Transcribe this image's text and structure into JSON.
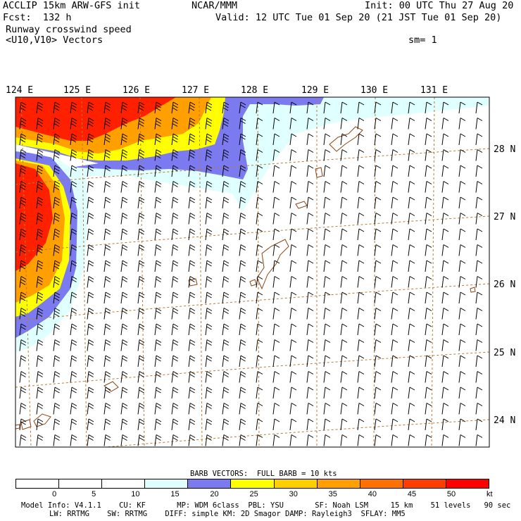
{
  "header": {
    "model": "ACCLIP 15km ARW-GFS init",
    "org": "NCAR/MMM",
    "init": "Init: 00 UTC Thu 27 Aug 20",
    "fcst": "Fcst:  132 h",
    "valid": "Valid: 12 UTC Tue 01 Sep 20 (21 JST Tue 01 Sep 20)",
    "field": "Runway crosswind speed",
    "vectors": "<U10,V10> Vectors",
    "smoothing": "sm= 1"
  },
  "axes": {
    "lon_labels": [
      "124 E",
      "125 E",
      "126 E",
      "127 E",
      "128 E",
      "129 E",
      "130 E",
      "131 E"
    ],
    "lat_labels": [
      "28 N",
      "27 N",
      "26 N",
      "25 N",
      "24 N"
    ]
  },
  "colorbar": {
    "title": "BARB VECTORS:  FULL BARB = 10 kts",
    "ticks": [
      "0",
      "5",
      "10",
      "15",
      "20",
      "25",
      "30",
      "35",
      "40",
      "45",
      "50",
      "kt"
    ],
    "colors": [
      "#ffffff",
      "#ffffff",
      "#ffffff",
      "#e0ffff",
      "#7b7bef",
      "#ffff00",
      "#ffd000",
      "#ffa000",
      "#ff7000",
      "#ff3c00",
      "#ff0000",
      "#ff0000"
    ]
  },
  "footer": {
    "line1": "Model Info: V4.1.1    CU: KF       MP: WDM 6class  PBL: YSU       SF: Noah LSM     15 km    51 levels   90 sec",
    "line2": "LW: RRTMG    SW: RRTMG    DIFF: simple KM: 2D Smagor DAMP: Rayleigh3  SFLAY: MM5"
  },
  "map_colors": {
    "grid": "#b97a3a",
    "coast": "#8b4513",
    "lightcyan": "#e0ffff",
    "blue": "#7b7bef",
    "yellow": "#ffff00",
    "orange": "#ffa000",
    "red": "#ff2000"
  }
}
